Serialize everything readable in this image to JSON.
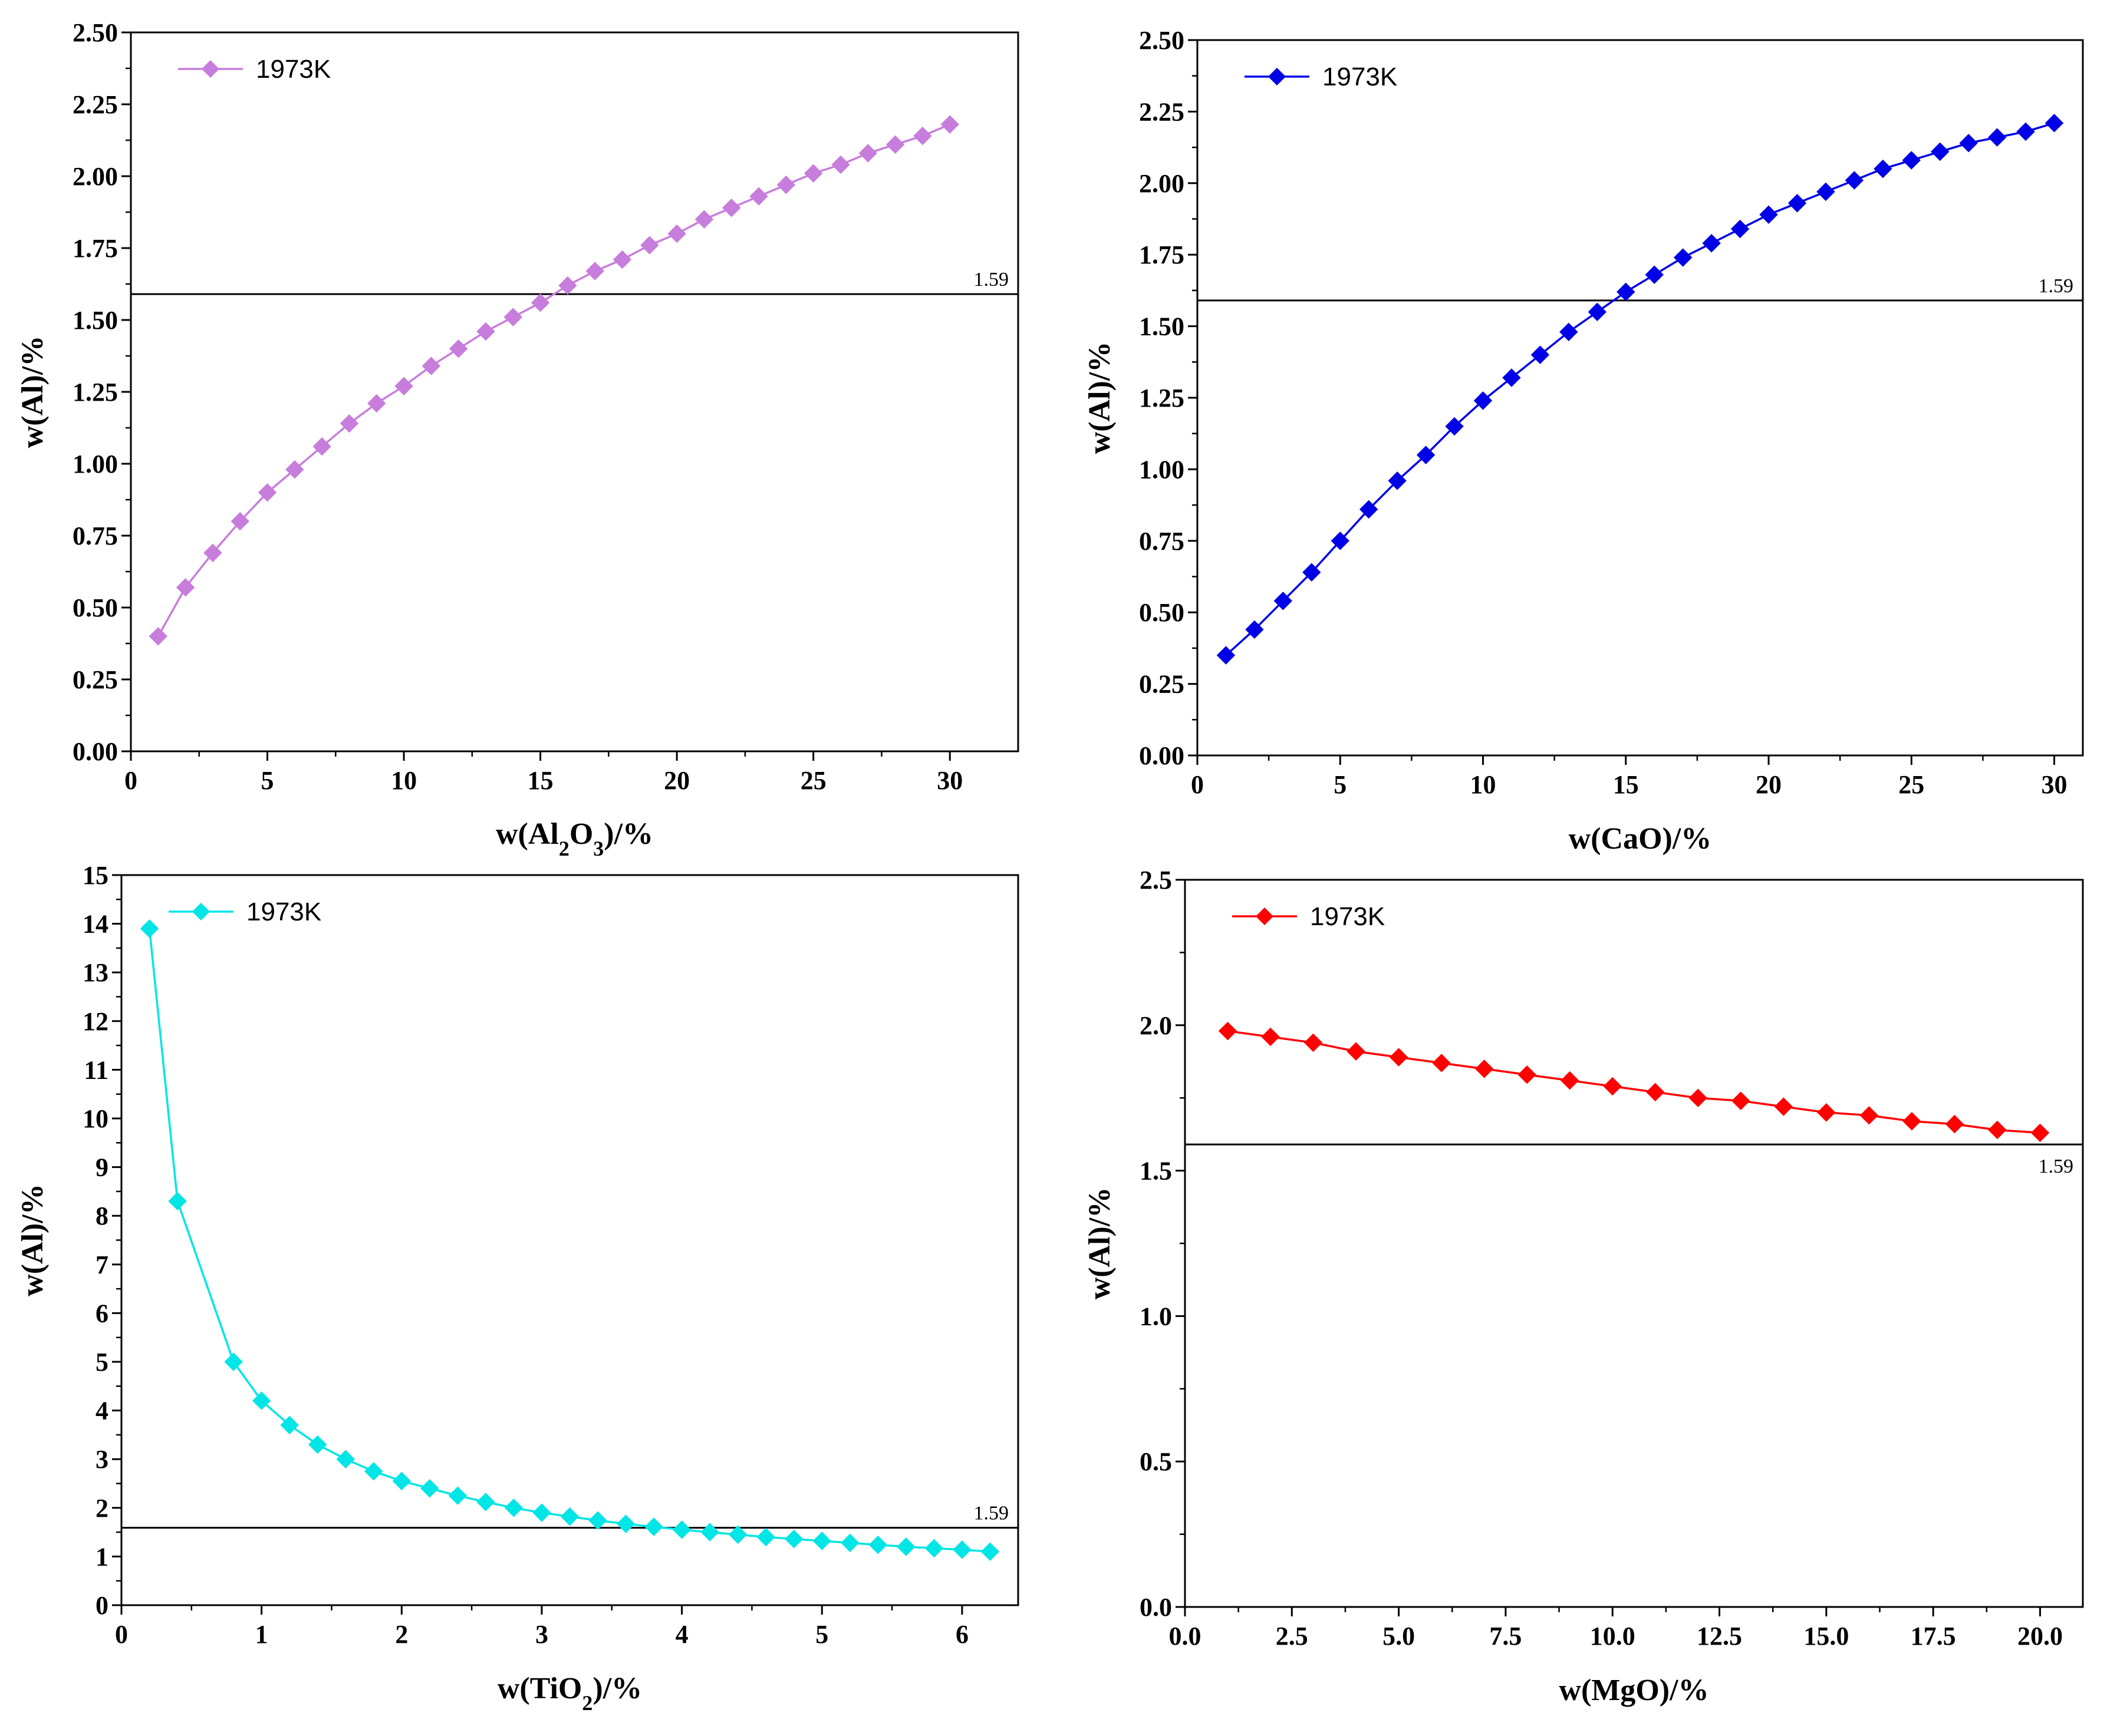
{
  "chart_data": [
    {
      "type": "line",
      "id": "al2o3",
      "color": "#c77ddb",
      "xlabel_parts": [
        {
          "t": "w(Al"
        },
        {
          "t": "2",
          "sub": true
        },
        {
          "t": "O"
        },
        {
          "t": "3",
          "sub": true
        },
        {
          "t": ")/%"
        }
      ],
      "ylabel": "w(Al)/%",
      "xlim": [
        0,
        32.5
      ],
      "ylim": [
        0,
        2.5
      ],
      "xticks": [
        0,
        5,
        10,
        15,
        20,
        25,
        30
      ],
      "xtick_labels": [
        "0",
        "5",
        "10",
        "15",
        "20",
        "25",
        "30"
      ],
      "yticks": [
        0,
        0.25,
        0.5,
        0.75,
        1.0,
        1.25,
        1.5,
        1.75,
        2.0,
        2.25,
        2.5
      ],
      "ytick_labels": [
        "0.00",
        "0.25",
        "0.50",
        "0.75",
        "1.00",
        "1.25",
        "1.50",
        "1.75",
        "2.00",
        "2.25",
        "2.50"
      ],
      "series": [
        {
          "name": "1973K",
          "x": [
            1,
            2,
            3,
            4,
            5,
            6,
            7,
            8,
            9,
            10,
            11,
            12,
            13,
            14,
            15,
            16,
            17,
            18,
            19,
            20,
            21,
            22,
            23,
            24,
            25,
            26,
            27,
            28,
            29,
            30
          ],
          "y": [
            0.4,
            0.57,
            0.69,
            0.8,
            0.9,
            0.98,
            1.06,
            1.14,
            1.21,
            1.27,
            1.34,
            1.4,
            1.46,
            1.51,
            1.56,
            1.62,
            1.67,
            1.71,
            1.76,
            1.8,
            1.85,
            1.89,
            1.93,
            1.97,
            2.01,
            2.04,
            2.08,
            2.11,
            2.14,
            2.18
          ]
        }
      ],
      "reference_line": {
        "y": 1.59,
        "label": "1.59",
        "label_pos": "above-right"
      }
    },
    {
      "type": "line",
      "id": "cao",
      "color": "#0000e6",
      "xlabel_parts": [
        {
          "t": "w(CaO)/%"
        }
      ],
      "ylabel": "w(Al)/%",
      "xlim": [
        0,
        31
      ],
      "ylim": [
        0,
        2.5
      ],
      "xticks": [
        0,
        5,
        10,
        15,
        20,
        25,
        30
      ],
      "xtick_labels": [
        "0",
        "5",
        "10",
        "15",
        "20",
        "25",
        "30"
      ],
      "yticks": [
        0,
        0.25,
        0.5,
        0.75,
        1.0,
        1.25,
        1.5,
        1.75,
        2.0,
        2.25,
        2.5
      ],
      "ytick_labels": [
        "0.00",
        "0.25",
        "0.50",
        "0.75",
        "1.00",
        "1.25",
        "1.50",
        "1.75",
        "2.00",
        "2.25",
        "2.50"
      ],
      "series": [
        {
          "name": "1973K",
          "x": [
            1,
            2,
            3,
            4,
            5,
            6,
            7,
            8,
            9,
            10,
            11,
            12,
            13,
            14,
            15,
            16,
            17,
            18,
            19,
            20,
            21,
            22,
            23,
            24,
            25,
            26,
            27,
            28,
            29,
            30
          ],
          "y": [
            0.35,
            0.44,
            0.54,
            0.64,
            0.75,
            0.86,
            0.96,
            1.05,
            1.15,
            1.24,
            1.32,
            1.4,
            1.48,
            1.55,
            1.62,
            1.68,
            1.74,
            1.79,
            1.84,
            1.89,
            1.93,
            1.97,
            2.01,
            2.05,
            2.08,
            2.11,
            2.14,
            2.16,
            2.18,
            2.21
          ]
        }
      ],
      "reference_line": {
        "y": 1.59,
        "label": "1.59",
        "label_pos": "above-right"
      }
    },
    {
      "type": "line",
      "id": "tio2",
      "color": "#00e5e5",
      "xlabel_parts": [
        {
          "t": "w(TiO"
        },
        {
          "t": "2",
          "sub": true
        },
        {
          "t": ")/%"
        }
      ],
      "ylabel": "w(Al)/%",
      "xlim": [
        0,
        6.4
      ],
      "ylim": [
        0,
        15
      ],
      "xticks": [
        0,
        1,
        2,
        3,
        4,
        5,
        6
      ],
      "xtick_labels": [
        "0",
        "1",
        "2",
        "3",
        "4",
        "5",
        "6"
      ],
      "yticks": [
        0,
        1,
        2,
        3,
        4,
        5,
        6,
        7,
        8,
        9,
        10,
        11,
        12,
        13,
        14,
        15
      ],
      "ytick_labels": [
        "0",
        "1",
        "2",
        "3",
        "4",
        "5",
        "6",
        "7",
        "8",
        "9",
        "10",
        "11",
        "12",
        "13",
        "14",
        "15"
      ],
      "series": [
        {
          "name": "1973K",
          "x": [
            0.2,
            0.4,
            0.8,
            1.0,
            1.2,
            1.4,
            1.6,
            1.8,
            2.0,
            2.2,
            2.4,
            2.6,
            2.8,
            3.0,
            3.2,
            3.4,
            3.6,
            3.8,
            4.0,
            4.2,
            4.4,
            4.6,
            4.8,
            5.0,
            5.2,
            5.4,
            5.6,
            5.8,
            6.0,
            6.2
          ],
          "y": [
            13.9,
            8.3,
            5.0,
            4.2,
            3.7,
            3.3,
            3.0,
            2.75,
            2.55,
            2.4,
            2.25,
            2.12,
            2.0,
            1.9,
            1.82,
            1.74,
            1.67,
            1.61,
            1.55,
            1.5,
            1.45,
            1.4,
            1.36,
            1.32,
            1.28,
            1.24,
            1.2,
            1.17,
            1.14,
            1.1
          ]
        }
      ],
      "reference_line": {
        "y": 1.59,
        "label": "1.59",
        "label_pos": "above-right"
      }
    },
    {
      "type": "line",
      "id": "mgo",
      "color": "#ff0000",
      "xlabel_parts": [
        {
          "t": "w(MgO)/%"
        }
      ],
      "ylabel": "w(Al)/%",
      "xlim": [
        0,
        21
      ],
      "ylim": [
        0,
        2.5
      ],
      "xticks": [
        0,
        2.5,
        5,
        7.5,
        10,
        12.5,
        15,
        17.5,
        20
      ],
      "xtick_labels": [
        "0.0",
        "2.5",
        "5.0",
        "7.5",
        "10.0",
        "12.5",
        "15.0",
        "17.5",
        "20.0"
      ],
      "yticks": [
        0,
        0.5,
        1.0,
        1.5,
        2.0,
        2.5
      ],
      "ytick_labels": [
        "0.0",
        "0.5",
        "1.0",
        "1.5",
        "2.0",
        "2.5"
      ],
      "series": [
        {
          "name": "1973K",
          "x": [
            1,
            2,
            3,
            4,
            5,
            6,
            7,
            8,
            9,
            10,
            11,
            12,
            13,
            14,
            15,
            16,
            17,
            18,
            19,
            20
          ],
          "y": [
            1.98,
            1.96,
            1.94,
            1.91,
            1.89,
            1.87,
            1.85,
            1.83,
            1.81,
            1.79,
            1.77,
            1.75,
            1.74,
            1.72,
            1.7,
            1.69,
            1.67,
            1.66,
            1.64,
            1.63
          ]
        }
      ],
      "reference_line": {
        "y": 1.59,
        "label": "1.59",
        "label_pos": "below-right"
      }
    }
  ]
}
